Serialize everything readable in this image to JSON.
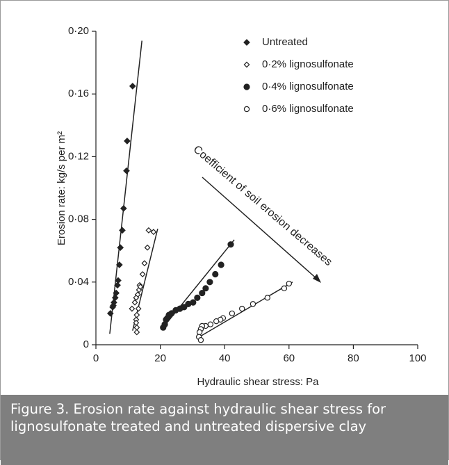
{
  "chart_data": {
    "type": "scatter",
    "x_label": "Hydraulic shear stress: Pa",
    "y_label": "Erosion rate: kg/s per m²",
    "annotation": "Coefficient of soil erosion decreases",
    "caption": "Figure 3. Erosion rate against hydraulic shear stress for lignosulfonate treated and untreated dispersive clay",
    "xlim": [
      0,
      100
    ],
    "xticks": [
      0,
      20,
      40,
      60,
      80,
      100
    ],
    "ylim": [
      0,
      0.2
    ],
    "yticks": [
      0,
      {
        "value": 0.04,
        "label": "0·04"
      },
      {
        "value": 0.08,
        "label": "0·08"
      },
      {
        "value": 0.12,
        "label": "0·12"
      },
      {
        "value": 0.16,
        "label": "0·16"
      },
      {
        "value": 0.2,
        "label": "0·20"
      }
    ],
    "legend": "upper right",
    "series": [
      {
        "name": "Untreated",
        "color": "#222222",
        "marker": "diamond",
        "x": [
          11.4,
          9.7,
          9.5,
          8.6,
          8.2,
          7.6,
          7.3,
          6.9,
          6.7,
          6.3,
          6.0,
          5.6,
          5.4,
          5.2,
          4.5
        ],
        "values": [
          0.165,
          0.13,
          0.111,
          0.087,
          0.073,
          0.062,
          0.051,
          0.041,
          0.038,
          0.033,
          0.03,
          0.027,
          0.025,
          0.024,
          0.02
        ],
        "fit_x": [
          4.3,
          14.3
        ],
        "fit_y": [
          0.007,
          0.194
        ]
      },
      {
        "name": "0·2% lignosulfonate",
        "color": "#222222",
        "marker": "diamond-open",
        "x": [
          16.4,
          17.9,
          16.0,
          15.1,
          14.5,
          13.6,
          13.0,
          12.1,
          11.2,
          13.4,
          13.8,
          12.5,
          13.2,
          12.7,
          12.5,
          12.5,
          12.7,
          12.7
        ],
        "values": [
          0.073,
          0.072,
          0.062,
          0.052,
          0.045,
          0.038,
          0.032,
          0.027,
          0.023,
          0.035,
          0.037,
          0.03,
          0.023,
          0.019,
          0.016,
          0.014,
          0.011,
          0.008
        ],
        "fit_x": [
          11.4,
          19.2
        ],
        "fit_y": [
          0.009,
          0.074
        ]
      },
      {
        "name": "0·4% lignosulfonate",
        "color": "#222222",
        "marker": "circle",
        "x": [
          41.9,
          38.9,
          37.1,
          35.4,
          34.1,
          33.0,
          31.5,
          30.2,
          28.7,
          27.4,
          26.1,
          24.8,
          23.5,
          22.7,
          22.2,
          21.8,
          21.4,
          20.9
        ],
        "values": [
          0.064,
          0.051,
          0.045,
          0.04,
          0.036,
          0.033,
          0.03,
          0.027,
          0.026,
          0.024,
          0.023,
          0.022,
          0.02,
          0.019,
          0.017,
          0.016,
          0.013,
          0.011
        ],
        "fit_x": [
          20.5,
          43.0
        ],
        "fit_y": [
          0.01,
          0.067
        ]
      },
      {
        "name": "0·6% lignosulfonate",
        "color": "#222222",
        "marker": "circle-open",
        "x": [
          60.0,
          58.5,
          53.3,
          48.8,
          45.4,
          42.3,
          39.5,
          38.7,
          37.4,
          35.6,
          34.1,
          33.0,
          32.6,
          32.2,
          32.0,
          32.6
        ],
        "values": [
          0.039,
          0.036,
          0.03,
          0.026,
          0.023,
          0.02,
          0.017,
          0.016,
          0.015,
          0.013,
          0.012,
          0.012,
          0.01,
          0.008,
          0.005,
          0.003
        ],
        "fit_x": [
          31.3,
          61.1
        ],
        "fit_y": [
          0.004,
          0.04
        ]
      }
    ]
  }
}
